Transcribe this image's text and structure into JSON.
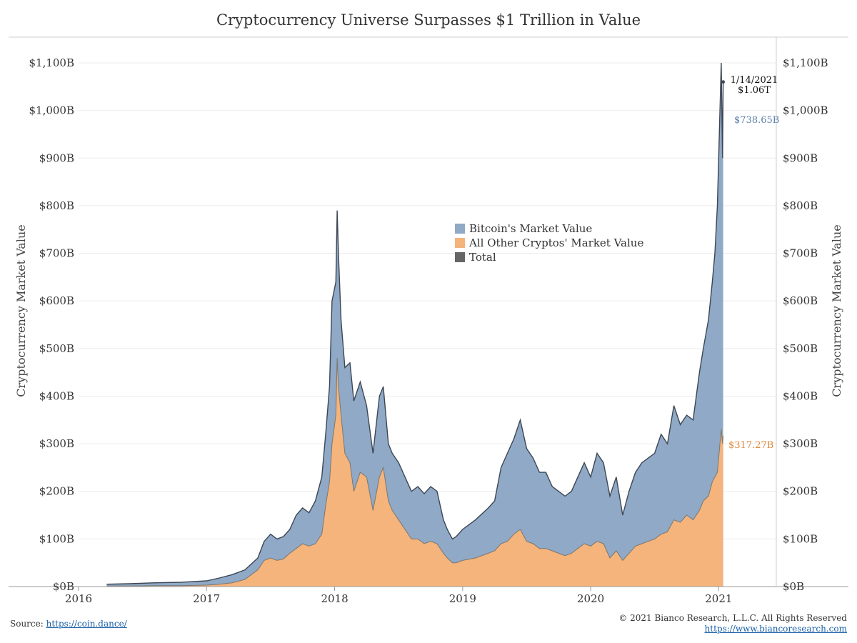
{
  "header": {
    "title": "Cryptocurrency Universe Surpasses $1 Trillion in Value"
  },
  "footer": {
    "source_label": "Source:",
    "source_link": "https://coin.dance/",
    "copyright": "© 2021 Bianco Research, L.L.C. All Rights Reserved",
    "website": "https://www.biancoresearch.com"
  },
  "chart_data": {
    "type": "area",
    "title": "Cryptocurrency Universe Surpasses $1 Trillion in Value",
    "ylabel_left": "Cryptocurrency Market Value",
    "ylabel_right": "Cryptocurrency Market Value",
    "xlim": [
      2016.0,
      2021.45
    ],
    "ylim": [
      0,
      1100
    ],
    "y_ticks": [
      0,
      100,
      200,
      300,
      400,
      500,
      600,
      700,
      800,
      900,
      1000,
      1100
    ],
    "y_tick_labels": [
      "$0B",
      "$100B",
      "$200B",
      "$300B",
      "$400B",
      "$500B",
      "$600B",
      "$700B",
      "$800B",
      "$900B",
      "$1,000B",
      "$1,100B"
    ],
    "x_ticks": [
      2016,
      2017,
      2018,
      2019,
      2020,
      2021
    ],
    "x_tick_labels": [
      "2016",
      "2017",
      "2018",
      "2019",
      "2020",
      "2021"
    ],
    "grid": {
      "horizontal": true,
      "vertical": false
    },
    "legend_position": "center",
    "legend": [
      {
        "label": "Bitcoin's Market Value",
        "color": "#8fa9c6"
      },
      {
        "label": "All Other Cryptos' Market Value",
        "color": "#f5b47c"
      },
      {
        "label": "Total",
        "color": "#666666"
      }
    ],
    "colors": {
      "bitcoin": "#8fa9c6",
      "others": "#f5b47c",
      "total_line": "#3d4654",
      "others_line": "#7b7770"
    },
    "annotations": {
      "total_date": "1/14/2021",
      "total_value": "$1.06T",
      "bitcoin_value": "$738.65B",
      "others_value": "$317.27B"
    },
    "series": [
      {
        "name": "Total",
        "x": [
          2016.22,
          2016.4,
          2016.6,
          2016.8,
          2017.0,
          2017.1,
          2017.2,
          2017.3,
          2017.4,
          2017.45,
          2017.5,
          2017.55,
          2017.6,
          2017.65,
          2017.7,
          2017.75,
          2017.8,
          2017.85,
          2017.9,
          2017.93,
          2017.96,
          2017.98,
          2018.01,
          2018.02,
          2018.03,
          2018.05,
          2018.08,
          2018.12,
          2018.15,
          2018.2,
          2018.25,
          2018.3,
          2018.35,
          2018.38,
          2018.42,
          2018.45,
          2018.5,
          2018.55,
          2018.6,
          2018.65,
          2018.7,
          2018.75,
          2018.8,
          2018.85,
          2018.88,
          2018.92,
          2018.95,
          2019.0,
          2019.1,
          2019.2,
          2019.25,
          2019.3,
          2019.35,
          2019.4,
          2019.45,
          2019.5,
          2019.55,
          2019.6,
          2019.65,
          2019.7,
          2019.75,
          2019.8,
          2019.85,
          2019.9,
          2019.95,
          2020.0,
          2020.05,
          2020.1,
          2020.15,
          2020.2,
          2020.25,
          2020.3,
          2020.35,
          2020.4,
          2020.45,
          2020.5,
          2020.55,
          2020.6,
          2020.65,
          2020.7,
          2020.75,
          2020.8,
          2020.85,
          2020.88,
          2020.92,
          2020.95,
          2020.97,
          2020.99,
          2021.0,
          2021.02,
          2021.03,
          2021.035
        ],
        "values": [
          5,
          6,
          8,
          9,
          12,
          18,
          25,
          35,
          60,
          95,
          110,
          100,
          105,
          120,
          150,
          165,
          155,
          180,
          230,
          320,
          420,
          600,
          640,
          790,
          700,
          560,
          460,
          470,
          390,
          430,
          380,
          280,
          400,
          420,
          300,
          280,
          260,
          230,
          200,
          210,
          195,
          210,
          200,
          140,
          120,
          100,
          105,
          120,
          140,
          165,
          180,
          250,
          280,
          310,
          350,
          290,
          270,
          240,
          240,
          210,
          200,
          190,
          200,
          230,
          260,
          230,
          280,
          260,
          190,
          230,
          150,
          200,
          240,
          260,
          270,
          280,
          320,
          300,
          380,
          340,
          360,
          350,
          450,
          500,
          560,
          640,
          700,
          800,
          900,
          1100,
          900,
          1060
        ]
      },
      {
        "name": "All Other Cryptos' Market Value",
        "x": [
          2016.22,
          2016.4,
          2016.6,
          2016.8,
          2017.0,
          2017.1,
          2017.2,
          2017.3,
          2017.4,
          2017.45,
          2017.5,
          2017.55,
          2017.6,
          2017.65,
          2017.7,
          2017.75,
          2017.8,
          2017.85,
          2017.9,
          2017.93,
          2017.96,
          2017.98,
          2018.01,
          2018.02,
          2018.03,
          2018.05,
          2018.08,
          2018.12,
          2018.15,
          2018.2,
          2018.25,
          2018.3,
          2018.35,
          2018.38,
          2018.42,
          2018.45,
          2018.5,
          2018.55,
          2018.6,
          2018.65,
          2018.7,
          2018.75,
          2018.8,
          2018.85,
          2018.88,
          2018.92,
          2018.95,
          2019.0,
          2019.1,
          2019.2,
          2019.25,
          2019.3,
          2019.35,
          2019.4,
          2019.45,
          2019.5,
          2019.55,
          2019.6,
          2019.65,
          2019.7,
          2019.75,
          2019.8,
          2019.85,
          2019.9,
          2019.95,
          2020.0,
          2020.05,
          2020.1,
          2020.15,
          2020.2,
          2020.25,
          2020.3,
          2020.35,
          2020.4,
          2020.45,
          2020.5,
          2020.55,
          2020.6,
          2020.65,
          2020.7,
          2020.75,
          2020.8,
          2020.85,
          2020.88,
          2020.92,
          2020.95,
          2020.97,
          2020.99,
          2021.0,
          2021.02,
          2021.03,
          2021.035
        ],
        "values": [
          1,
          1,
          2,
          2,
          3,
          5,
          8,
          15,
          35,
          55,
          60,
          55,
          58,
          70,
          80,
          90,
          85,
          90,
          110,
          170,
          220,
          300,
          360,
          480,
          420,
          360,
          280,
          260,
          200,
          240,
          230,
          160,
          230,
          250,
          180,
          160,
          140,
          120,
          100,
          100,
          90,
          95,
          90,
          70,
          60,
          50,
          50,
          55,
          60,
          70,
          75,
          90,
          95,
          110,
          120,
          95,
          90,
          80,
          80,
          75,
          70,
          65,
          70,
          80,
          90,
          85,
          95,
          90,
          60,
          75,
          55,
          70,
          85,
          90,
          95,
          100,
          110,
          115,
          140,
          135,
          150,
          140,
          160,
          180,
          190,
          220,
          230,
          240,
          270,
          330,
          300,
          317
        ]
      }
    ]
  }
}
